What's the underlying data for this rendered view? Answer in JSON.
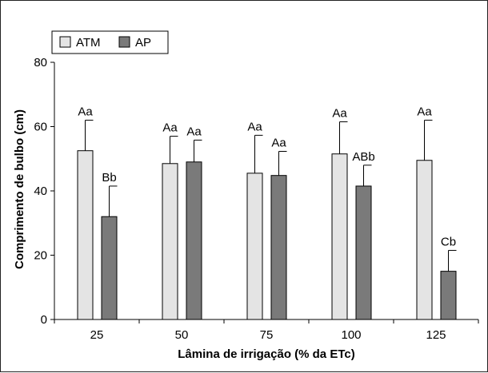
{
  "chart_data": {
    "type": "bar",
    "categories": [
      "25",
      "50",
      "75",
      "100",
      "125"
    ],
    "xlabel": "Lâmina de irrigação (% da ETc)",
    "ylabel": "Comprimento de bulbo (cm)",
    "ylim": [
      0,
      80
    ],
    "yticks": [
      0,
      20,
      40,
      60,
      80
    ],
    "legend_position": "top-left",
    "series": [
      {
        "name": "ATM",
        "color": "#e4e4e4",
        "values": [
          52.5,
          48.5,
          45.5,
          51.5,
          49.5
        ],
        "error": [
          9.5,
          8.5,
          11.8,
          10.0,
          12.5
        ],
        "letters": [
          "Aa",
          "Aa",
          "Aa",
          "Aa",
          "Aa"
        ]
      },
      {
        "name": "AP",
        "color": "#7a7a7a",
        "values": [
          32.0,
          49.0,
          44.8,
          41.5,
          15.0
        ],
        "error": [
          9.5,
          6.8,
          7.5,
          6.5,
          6.5
        ],
        "letters": [
          "Bb",
          "Aa",
          "Aa",
          "ABb",
          "Cb"
        ]
      }
    ]
  }
}
